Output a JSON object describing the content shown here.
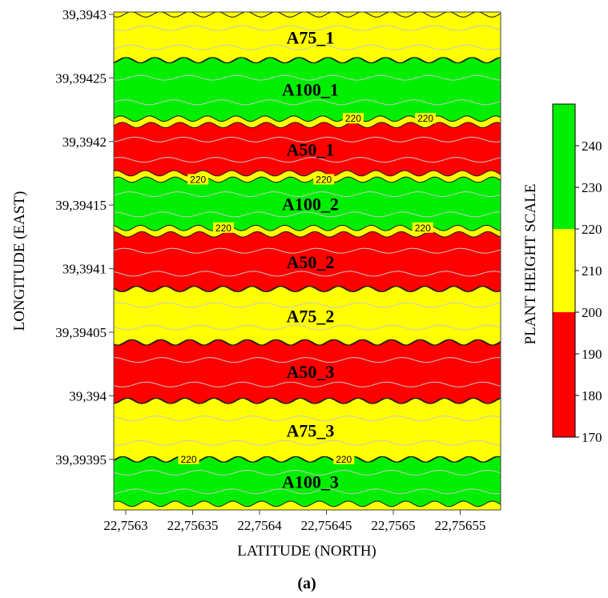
{
  "chart_data": {
    "type": "heatmap",
    "title": "",
    "xlabel": "LATITUDE (NORTH)",
    "ylabel": "LONGITUDE (EAST)",
    "caption": "(a)",
    "x_ticks": [
      "22,7563",
      "22,75635",
      "22,7564",
      "22,75645",
      "22,7565",
      "22,75655"
    ],
    "y_ticks": [
      "39,3943",
      "39,39425",
      "39,3942",
      "39,39415",
      "39,3941",
      "39,39405",
      "39,394",
      "39,39395"
    ],
    "zones": [
      {
        "label": "A75_1",
        "y_top": 39.3943,
        "y_bottom": 39.394264,
        "level": 210
      },
      {
        "label": "A100_1",
        "y_top": 39.394264,
        "y_bottom": 39.394218,
        "level": 230
      },
      {
        "label": "A50_1",
        "y_top": 39.394213,
        "y_bottom": 39.394175,
        "level": 185
      },
      {
        "label": "A100_2",
        "y_top": 39.39417,
        "y_bottom": 39.394132,
        "level": 230
      },
      {
        "label": "A50_2",
        "y_top": 39.394127,
        "y_bottom": 39.394084,
        "level": 185
      },
      {
        "label": "A75_2",
        "y_top": 39.394084,
        "y_bottom": 39.394042,
        "level": 210
      },
      {
        "label": "A50_3",
        "y_top": 39.394042,
        "y_bottom": 39.393996,
        "level": 185
      },
      {
        "label": "A75_3",
        "y_top": 39.393996,
        "y_bottom": 39.39395,
        "level": 210
      },
      {
        "label": "A100_3",
        "y_top": 39.39395,
        "y_bottom": 39.393915,
        "level": 230
      }
    ],
    "contour_labels": [
      {
        "text": "220",
        "x": 22.75647,
        "y": 39.394218
      },
      {
        "text": "220",
        "x": 22.756524,
        "y": 39.394218
      },
      {
        "text": "220",
        "x": 22.756354,
        "y": 39.39417
      },
      {
        "text": "220",
        "x": 22.756448,
        "y": 39.39417
      },
      {
        "text": "220",
        "x": 22.756373,
        "y": 39.394132
      },
      {
        "text": "220",
        "x": 22.756522,
        "y": 39.394132
      },
      {
        "text": "220",
        "x": 22.756347,
        "y": 39.39395
      },
      {
        "text": "220",
        "x": 22.756463,
        "y": 39.39395
      }
    ],
    "colorbar": {
      "title": "PLANT HEIGHT SCALE",
      "ticks": [
        "240",
        "230",
        "220",
        "210",
        "200",
        "190",
        "180",
        "170"
      ],
      "range": [
        170,
        250
      ],
      "bands": [
        {
          "from": 220,
          "to": 250,
          "color": "#00ee00"
        },
        {
          "from": 200,
          "to": 220,
          "color": "#ffff00"
        },
        {
          "from": 170,
          "to": 200,
          "color": "#ff0000"
        }
      ]
    }
  }
}
